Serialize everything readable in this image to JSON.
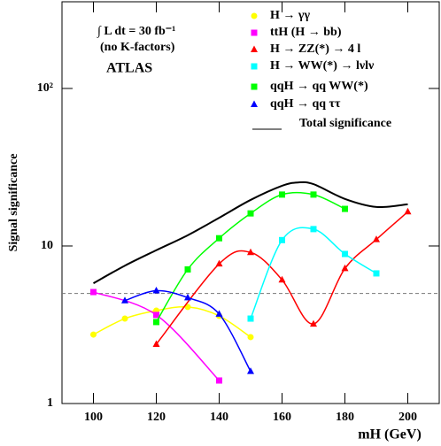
{
  "chart_data": {
    "type": "line",
    "y_label": "Signal significance",
    "x_label": "mH (GeV)",
    "annotations": [
      "∫ L dt = 30 fb⁻¹",
      "(no K-factors)",
      "ATLAS"
    ],
    "xlim": [
      90,
      210
    ],
    "xticks": [
      100,
      120,
      140,
      160,
      180,
      200
    ],
    "ylim": [
      1,
      355
    ],
    "yticks": [
      1,
      10,
      {
        "value": 100,
        "label": "10²"
      }
    ],
    "log_y": true,
    "threshold": 5,
    "series": [
      {
        "name": "H → γγ",
        "color": "#ffff00",
        "marker": "circle",
        "x": [
          100,
          110,
          120,
          130,
          140,
          150
        ],
        "values": [
          2.74,
          3.46,
          3.89,
          4.1,
          3.6,
          2.64
        ]
      },
      {
        "name": "ttH (H → bb)",
        "color": "#ff00ff",
        "marker": "square",
        "x": [
          100,
          120,
          140
        ],
        "values": [
          5.1,
          3.65,
          1.4
        ]
      },
      {
        "name": "H → ZZ(*) → 4 l",
        "color": "#ff0000",
        "marker": "triangle",
        "x": [
          120,
          140,
          150,
          160,
          170,
          180,
          190,
          200
        ],
        "values": [
          2.38,
          7.7,
          9.1,
          6.1,
          3.2,
          7.2,
          11,
          16.5
        ]
      },
      {
        "name": "H → WW(*) → lνlν",
        "color": "#00ffff",
        "marker": "square",
        "x": [
          150,
          160,
          170,
          180,
          190
        ],
        "values": [
          3.46,
          10.9,
          12.8,
          8.9,
          6.7
        ]
      },
      {
        "name": "qqH → qq WW(*)",
        "color": "#00ff00",
        "marker": "square",
        "x": [
          120,
          130,
          140,
          150,
          160,
          170,
          180
        ],
        "values": [
          3.29,
          7.1,
          11.2,
          16.1,
          21.2,
          21.2,
          17.2
        ]
      },
      {
        "name": "qqH → qq ττ",
        "color": "#0000ff",
        "marker": "triangle",
        "x": [
          110,
          120,
          130,
          140,
          150
        ],
        "values": [
          4.5,
          5.2,
          4.7,
          3.7,
          1.6
        ]
      },
      {
        "name": "Total significance",
        "color": "#000000",
        "marker": "none",
        "x": [
          100,
          110,
          120,
          130,
          140,
          150,
          160,
          165,
          170,
          180,
          190,
          200
        ],
        "values": [
          5.8,
          7.5,
          9.4,
          11.7,
          15.1,
          19.6,
          24.1,
          25.3,
          24.7,
          19.9,
          17.7,
          18.4
        ]
      }
    ]
  }
}
